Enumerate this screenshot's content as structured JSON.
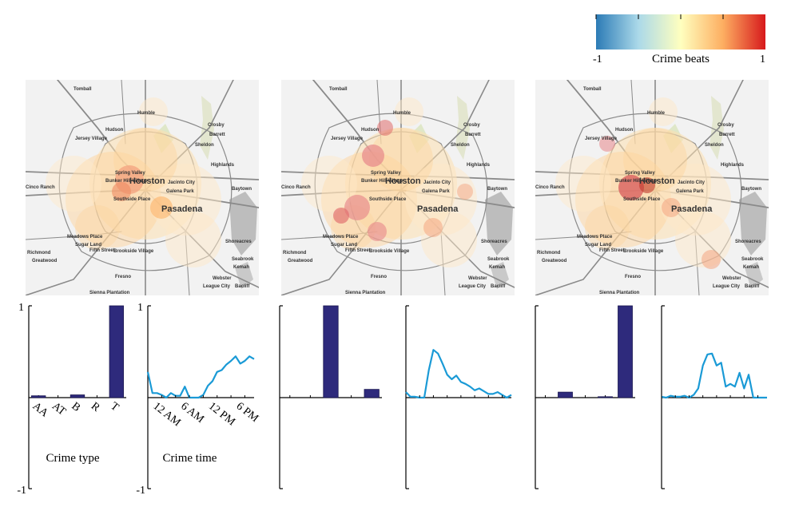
{
  "colorbar": {
    "title": "Crime beats",
    "min_label": "-1",
    "max_label": "1",
    "colors": [
      "#2c7bb6",
      "#abd9e9",
      "#ffffbf",
      "#fdae61",
      "#d7191c"
    ]
  },
  "maps": {
    "place_labels": [
      "Tomball",
      "Humble",
      "Crosby",
      "Barrett",
      "Sheldon",
      "Hudson",
      "Jersey Village",
      "Highlands",
      "Spring Valley",
      "Bunker Hill Village",
      "Houston",
      "Jacinto City",
      "Galena Park",
      "Baytown",
      "Cinco Ranch",
      "Southside Place",
      "Pasadena",
      "Meadows Place",
      "Sugar Land",
      "Fifth Street",
      "Shoreacres",
      "Richmond",
      "Greatwood",
      "Brookside Village",
      "Seabrook",
      "Kemah",
      "Fresno",
      "Webster",
      "League City",
      "Bacliff",
      "Sienna Plantation",
      "Manvel"
    ]
  },
  "chart_data": [
    {
      "type": "bar",
      "panel": 1,
      "title": "",
      "xlabel": "Crime type",
      "ylabel": "",
      "categories": [
        "AA",
        "AT",
        "B",
        "R",
        "T"
      ],
      "values": [
        0.02,
        0.0,
        0.03,
        0.0,
        1.0
      ],
      "ylim": [
        -1,
        1
      ],
      "ytick_labels": [
        "1",
        "-1"
      ]
    },
    {
      "type": "line",
      "panel": 1,
      "title": "",
      "xlabel": "Crime time",
      "ylabel": "",
      "xtick_labels": [
        "12 AM",
        "6 AM",
        "12 PM",
        "6 PM"
      ],
      "xtick_hours": [
        0,
        6,
        12,
        18
      ],
      "x": [
        0,
        1,
        2,
        3,
        4,
        5,
        6,
        7,
        8,
        9,
        10,
        11,
        12,
        13,
        14,
        15,
        16,
        17,
        18,
        19,
        20,
        21,
        22,
        23
      ],
      "values": [
        0.28,
        0.05,
        0.05,
        0.03,
        0.0,
        0.05,
        0.02,
        0.02,
        0.12,
        0.0,
        0.0,
        0.0,
        0.03,
        0.13,
        0.18,
        0.28,
        0.3,
        0.36,
        0.4,
        0.45,
        0.37,
        0.4,
        0.45,
        0.42
      ],
      "ylim": [
        -1,
        1
      ],
      "ytick_labels": [
        "1",
        "-1"
      ]
    },
    {
      "type": "bar",
      "panel": 2,
      "categories": [
        "AA",
        "AT",
        "B",
        "R",
        "T"
      ],
      "values": [
        0.0,
        0.0,
        1.0,
        0.0,
        0.09
      ],
      "ylim": [
        -1,
        1
      ]
    },
    {
      "type": "line",
      "panel": 2,
      "x": [
        0,
        1,
        2,
        3,
        4,
        5,
        6,
        7,
        8,
        9,
        10,
        11,
        12,
        13,
        14,
        15,
        16,
        17,
        18,
        19,
        20,
        21,
        22,
        23
      ],
      "values": [
        0.06,
        0.01,
        0.01,
        0.0,
        0.0,
        0.3,
        0.52,
        0.48,
        0.37,
        0.25,
        0.2,
        0.24,
        0.17,
        0.15,
        0.12,
        0.08,
        0.1,
        0.07,
        0.04,
        0.04,
        0.06,
        0.03,
        0.0,
        0.03
      ],
      "ylim": [
        -1,
        1
      ]
    },
    {
      "type": "bar",
      "panel": 3,
      "categories": [
        "AA",
        "AT",
        "B",
        "R",
        "T"
      ],
      "values": [
        0.0,
        0.06,
        0.0,
        0.01,
        1.0
      ],
      "ylim": [
        -1,
        1
      ]
    },
    {
      "type": "line",
      "panel": 3,
      "x": [
        0,
        1,
        2,
        3,
        4,
        5,
        6,
        7,
        8,
        9,
        10,
        11,
        12,
        13,
        14,
        15,
        16,
        17,
        18,
        19,
        20,
        21,
        22,
        23
      ],
      "values": [
        0.01,
        0.0,
        0.02,
        0.01,
        0.01,
        0.02,
        0.0,
        0.03,
        0.1,
        0.35,
        0.47,
        0.48,
        0.35,
        0.38,
        0.12,
        0.15,
        0.12,
        0.27,
        0.1,
        0.25,
        0.0,
        0.0,
        0.0,
        0.0
      ],
      "ylim": [
        -1,
        1
      ]
    }
  ]
}
